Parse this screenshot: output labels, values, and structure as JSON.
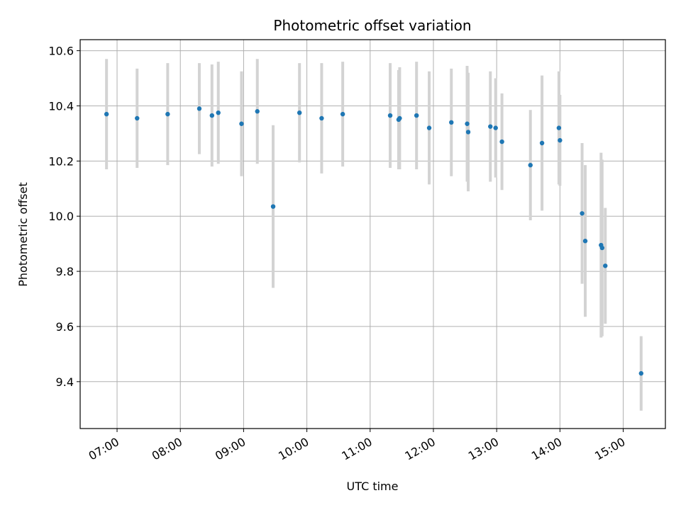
{
  "chart_data": {
    "type": "scatter",
    "title": "Photometric offset variation",
    "xlabel": "UTC time",
    "ylabel": "Photometric offset",
    "x_ticks": [
      "07:00",
      "08:00",
      "09:00",
      "10:00",
      "11:00",
      "12:00",
      "13:00",
      "14:00",
      "15:00"
    ],
    "y_ticks": [
      "9.4",
      "9.6",
      "9.8",
      "10.0",
      "10.2",
      "10.4",
      "10.6"
    ],
    "xlim": [
      "06:25",
      "15:40"
    ],
    "ylim": [
      9.23,
      10.64
    ],
    "grid": true,
    "colors": {
      "point": "#1f77b4",
      "errorbar": "#d3d3d3",
      "grid": "#b0b0b0"
    },
    "series": [
      {
        "points": [
          {
            "x": "06:50",
            "y": 10.37,
            "yerr": 0.2
          },
          {
            "x": "07:19",
            "y": 10.355,
            "yerr": 0.18
          },
          {
            "x": "07:48",
            "y": 10.37,
            "yerr": 0.185
          },
          {
            "x": "08:18",
            "y": 10.39,
            "yerr": 0.165
          },
          {
            "x": "08:30",
            "y": 10.365,
            "yerr": 0.185
          },
          {
            "x": "08:36",
            "y": 10.375,
            "yerr": 0.185
          },
          {
            "x": "08:58",
            "y": 10.335,
            "yerr": 0.19
          },
          {
            "x": "09:13",
            "y": 10.38,
            "yerr": 0.19
          },
          {
            "x": "09:28",
            "y": 10.035,
            "yerr": 0.295
          },
          {
            "x": "09:53",
            "y": 10.375,
            "yerr": 0.18
          },
          {
            "x": "10:14",
            "y": 10.355,
            "yerr": 0.2
          },
          {
            "x": "10:34",
            "y": 10.37,
            "yerr": 0.19
          },
          {
            "x": "11:19",
            "y": 10.365,
            "yerr": 0.19
          },
          {
            "x": "11:27",
            "y": 10.35,
            "yerr": 0.18
          },
          {
            "x": "11:28",
            "y": 10.355,
            "yerr": 0.185
          },
          {
            "x": "11:44",
            "y": 10.365,
            "yerr": 0.195
          },
          {
            "x": "11:56",
            "y": 10.32,
            "yerr": 0.205
          },
          {
            "x": "12:17",
            "y": 10.34,
            "yerr": 0.195
          },
          {
            "x": "12:32",
            "y": 10.335,
            "yerr": 0.21
          },
          {
            "x": "12:33",
            "y": 10.305,
            "yerr": 0.215
          },
          {
            "x": "12:54",
            "y": 10.325,
            "yerr": 0.2
          },
          {
            "x": "12:59",
            "y": 10.32,
            "yerr": 0.18
          },
          {
            "x": "13:05",
            "y": 10.27,
            "yerr": 0.175
          },
          {
            "x": "13:32",
            "y": 10.185,
            "yerr": 0.2
          },
          {
            "x": "13:43",
            "y": 10.265,
            "yerr": 0.245
          },
          {
            "x": "13:59",
            "y": 10.32,
            "yerr": 0.205
          },
          {
            "x": "14:00",
            "y": 10.275,
            "yerr": 0.165
          },
          {
            "x": "14:21",
            "y": 10.01,
            "yerr": 0.255
          },
          {
            "x": "14:24",
            "y": 9.91,
            "yerr": 0.275
          },
          {
            "x": "14:39",
            "y": 9.895,
            "yerr": 0.335
          },
          {
            "x": "14:40",
            "y": 9.885,
            "yerr": 0.32
          },
          {
            "x": "14:43",
            "y": 9.82,
            "yerr": 0.21
          },
          {
            "x": "15:17",
            "y": 9.43,
            "yerr": 0.135
          }
        ]
      }
    ]
  }
}
